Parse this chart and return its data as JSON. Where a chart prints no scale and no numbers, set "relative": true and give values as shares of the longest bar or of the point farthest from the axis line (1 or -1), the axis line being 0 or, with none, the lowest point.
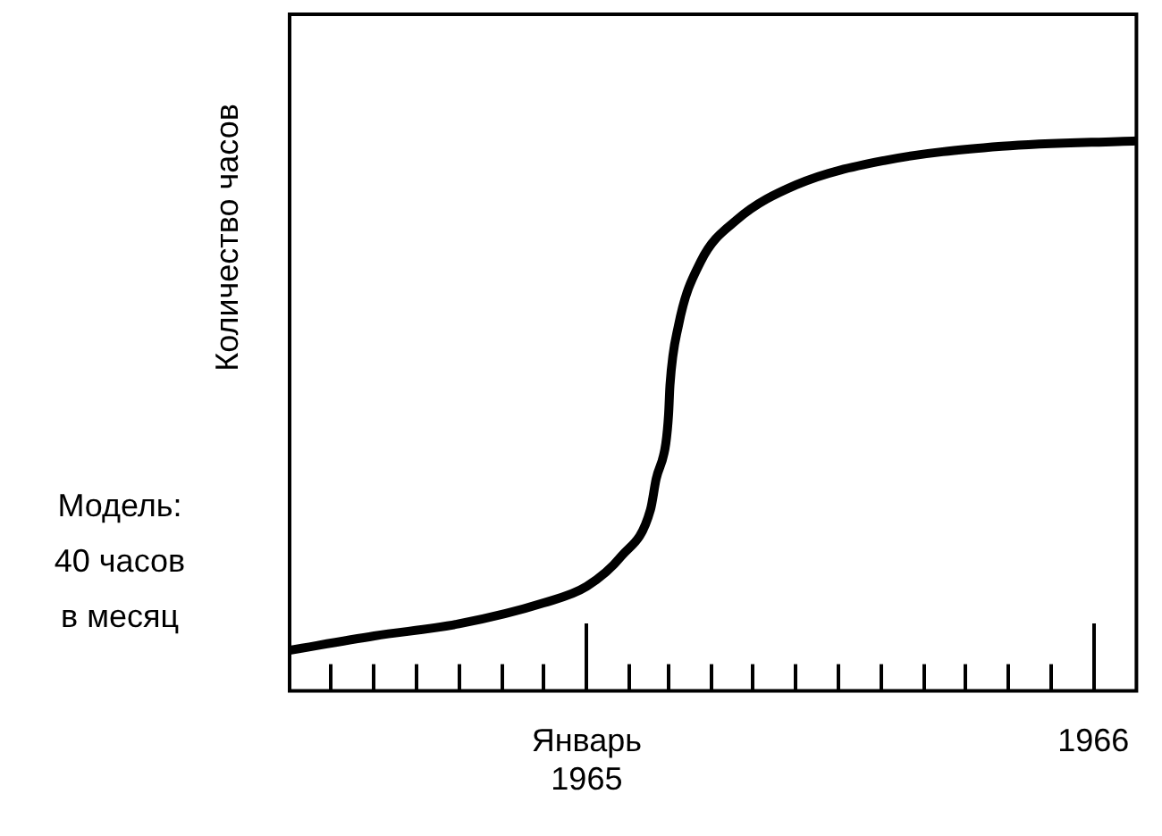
{
  "chart_data": {
    "type": "line",
    "relative": true,
    "ylabel": "Количество часов",
    "x": [
      "1964-06-01",
      "1964-08-01",
      "1964-10-01",
      "1964-12-01",
      "1965-01-01",
      "1965-01-26",
      "1965-02-16",
      "1965-02-20",
      "1965-02-27",
      "1965-03-01",
      "1965-03-02",
      "1965-03-08",
      "1965-03-24",
      "1965-04-19",
      "1965-06-01",
      "1965-08-03",
      "1965-10-27",
      "1966-02-01"
    ],
    "series": [
      {
        "color": "#000000",
        "values": [
          0.074,
          0.1,
          0.122,
          0.16,
          0.19,
          0.245,
          0.33,
          0.385,
          0.45,
          0.503,
          0.556,
          0.663,
          0.78,
          0.856,
          0.92,
          0.964,
          0.99,
          1.0
        ]
      }
    ],
    "xlim": [
      "1964-06",
      "1966-02"
    ],
    "xticks": [
      {
        "value": "1964-07",
        "label": null
      },
      {
        "value": "1964-08",
        "label": null
      },
      {
        "value": "1964-09",
        "label": null
      },
      {
        "value": "1964-10",
        "label": null
      },
      {
        "value": "1964-11",
        "label": null
      },
      {
        "value": "1964-12",
        "label": null
      },
      {
        "value": "1965-01",
        "label": "Январь\n1965"
      },
      {
        "value": "1965-02",
        "label": null
      },
      {
        "value": "1965-03",
        "label": null
      },
      {
        "value": "1965-04",
        "label": null
      },
      {
        "value": "1965-05",
        "label": null
      },
      {
        "value": "1965-06",
        "label": null
      },
      {
        "value": "1965-07",
        "label": null
      },
      {
        "value": "1965-08",
        "label": null
      },
      {
        "value": "1965-09",
        "label": null
      },
      {
        "value": "1965-10",
        "label": null
      },
      {
        "value": "1965-11",
        "label": null
      },
      {
        "value": "1965-12",
        "label": null
      },
      {
        "value": "1966-01",
        "label": "1966"
      }
    ],
    "annotations": [
      "Модель:\n40 часов\nв месяц"
    ],
    "marker": "none",
    "line_style": "solid",
    "legend": false,
    "grid": false
  }
}
